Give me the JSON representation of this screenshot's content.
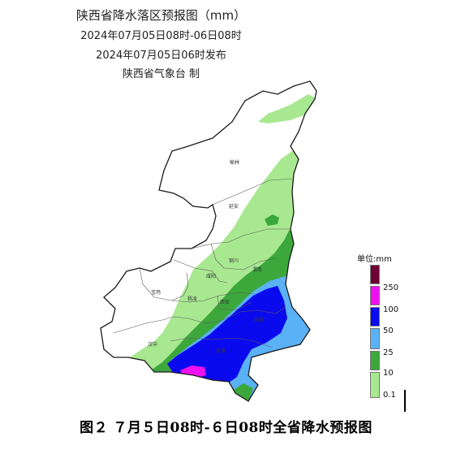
{
  "title": "陕西省降水落区预报图（mm）",
  "period": "2024年07月05日08时-06日08时",
  "issued": "2024年07月05日06时发布",
  "issuer": "陕西省气象台 制",
  "cities": {
    "yulin": "榆林",
    "yanan": "延安",
    "tongchuan": "铜川",
    "weinan": "渭南",
    "xianyang": "咸阳",
    "baoji": "宝鸡",
    "yangling": "杨凌",
    "xian": "西安",
    "shangluo": "商洛",
    "hanzhong": "汉中",
    "ankang": "安康"
  },
  "legend": {
    "title": "单位:mm",
    "items": [
      {
        "label": "250",
        "color": "#6e0036"
      },
      {
        "label": "100",
        "color": "#ee10ee"
      },
      {
        "label": "50",
        "color": "#0a0aee"
      },
      {
        "label": "25",
        "color": "#5bb1f5"
      },
      {
        "label": "10",
        "color": "#3ca83c"
      },
      {
        "label": "0.1",
        "color": "#a8e890"
      }
    ]
  },
  "caption": "图２  ７月５日08时-６日08时全省降水预报图"
}
